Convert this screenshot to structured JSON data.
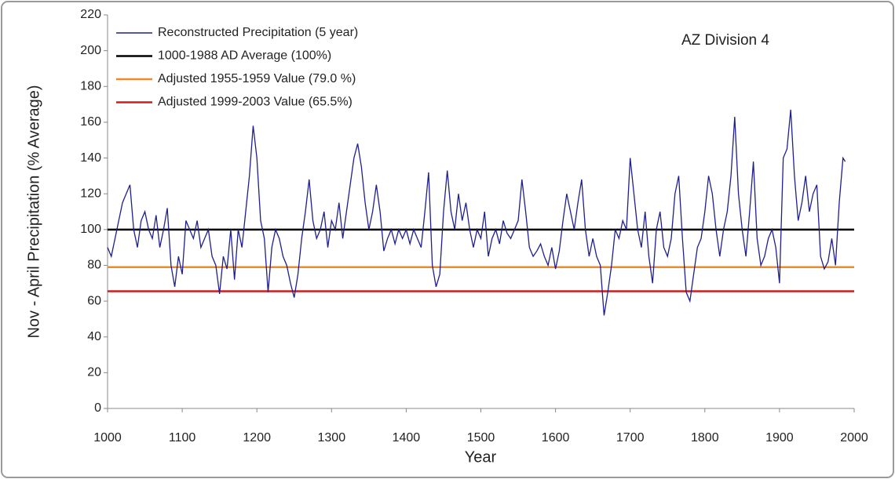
{
  "chart_data": {
    "type": "line",
    "annotation": "AZ Division 4",
    "xlabel": "Year",
    "ylabel": "Nov - April Precipitation (% Average)",
    "xlim": [
      1000,
      2000
    ],
    "xticks": [
      1000,
      1100,
      1200,
      1300,
      1400,
      1500,
      1600,
      1700,
      1800,
      1900,
      2000
    ],
    "ylim": [
      0,
      220
    ],
    "yticks": [
      0,
      20,
      40,
      60,
      80,
      100,
      120,
      140,
      160,
      180,
      200,
      220
    ],
    "x": [
      1000,
      1005,
      1010,
      1015,
      1020,
      1025,
      1030,
      1035,
      1040,
      1045,
      1050,
      1055,
      1060,
      1065,
      1070,
      1075,
      1080,
      1085,
      1090,
      1095,
      1100,
      1105,
      1110,
      1115,
      1120,
      1125,
      1130,
      1135,
      1140,
      1145,
      1150,
      1155,
      1160,
      1165,
      1170,
      1175,
      1180,
      1185,
      1190,
      1195,
      1200,
      1205,
      1210,
      1215,
      1220,
      1225,
      1230,
      1235,
      1240,
      1245,
      1250,
      1255,
      1260,
      1265,
      1270,
      1275,
      1280,
      1285,
      1290,
      1295,
      1300,
      1305,
      1310,
      1315,
      1320,
      1325,
      1330,
      1335,
      1340,
      1345,
      1350,
      1355,
      1360,
      1365,
      1370,
      1375,
      1380,
      1385,
      1390,
      1395,
      1400,
      1405,
      1410,
      1415,
      1420,
      1425,
      1430,
      1435,
      1440,
      1445,
      1450,
      1455,
      1460,
      1465,
      1470,
      1475,
      1480,
      1485,
      1490,
      1495,
      1500,
      1505,
      1510,
      1515,
      1520,
      1525,
      1530,
      1535,
      1540,
      1545,
      1550,
      1555,
      1560,
      1565,
      1570,
      1575,
      1580,
      1585,
      1590,
      1595,
      1600,
      1605,
      1610,
      1615,
      1620,
      1625,
      1630,
      1635,
      1640,
      1645,
      1650,
      1655,
      1660,
      1665,
      1670,
      1675,
      1680,
      1685,
      1690,
      1695,
      1700,
      1705,
      1710,
      1715,
      1720,
      1725,
      1730,
      1735,
      1740,
      1745,
      1750,
      1755,
      1760,
      1765,
      1770,
      1775,
      1780,
      1785,
      1790,
      1795,
      1800,
      1805,
      1810,
      1815,
      1820,
      1825,
      1830,
      1835,
      1840,
      1845,
      1850,
      1855,
      1860,
      1865,
      1870,
      1875,
      1880,
      1885,
      1890,
      1895,
      1900,
      1905,
      1910,
      1915,
      1920,
      1925,
      1930,
      1935,
      1940,
      1945,
      1950,
      1955,
      1960,
      1965,
      1970,
      1975,
      1980,
      1985,
      1988
    ],
    "series": [
      {
        "name": "Reconstructed Precipitation (5 year)",
        "color": "#1f1f8f",
        "values": [
          90,
          85,
          95,
          105,
          115,
          120,
          125,
          100,
          90,
          105,
          110,
          100,
          95,
          108,
          90,
          100,
          112,
          80,
          68,
          85,
          75,
          105,
          100,
          95,
          105,
          90,
          95,
          100,
          85,
          80,
          64,
          85,
          78,
          100,
          72,
          100,
          90,
          110,
          130,
          158,
          140,
          105,
          95,
          65,
          90,
          100,
          95,
          85,
          80,
          70,
          62,
          75,
          95,
          110,
          128,
          105,
          95,
          100,
          110,
          90,
          105,
          100,
          115,
          95,
          110,
          125,
          140,
          148,
          135,
          115,
          100,
          110,
          125,
          110,
          88,
          95,
          100,
          92,
          100,
          95,
          100,
          92,
          100,
          95,
          90,
          110,
          132,
          80,
          68,
          75,
          110,
          133,
          110,
          100,
          120,
          105,
          115,
          100,
          90,
          100,
          95,
          110,
          85,
          95,
          100,
          92,
          105,
          98,
          95,
          100,
          105,
          128,
          110,
          90,
          85,
          88,
          92,
          85,
          80,
          90,
          78,
          88,
          105,
          120,
          110,
          100,
          115,
          128,
          100,
          85,
          95,
          85,
          80,
          52,
          65,
          80,
          100,
          95,
          105,
          100,
          140,
          120,
          100,
          90,
          110,
          85,
          70,
          100,
          110,
          90,
          85,
          95,
          120,
          130,
          95,
          65,
          60,
          75,
          90,
          95,
          110,
          130,
          120,
          100,
          85,
          100,
          110,
          130,
          163,
          120,
          100,
          85,
          110,
          138,
          95,
          80,
          85,
          95,
          100,
          90,
          70,
          140,
          145,
          167,
          130,
          105,
          115,
          130,
          110,
          120,
          125,
          85,
          78,
          82,
          95,
          80,
          115,
          140,
          138
        ]
      }
    ],
    "reference_lines": [
      {
        "name": "1000-1988 AD Average (100%)",
        "color": "#000000",
        "value": 100
      },
      {
        "name": "Adjusted 1955-1959 Value (79.0 %)",
        "color": "#f08a24",
        "value": 79.0
      },
      {
        "name": "Adjusted 1999-2003 Value (65.5%)",
        "color": "#d01c1c",
        "value": 65.5
      }
    ],
    "legend": "upper left"
  }
}
